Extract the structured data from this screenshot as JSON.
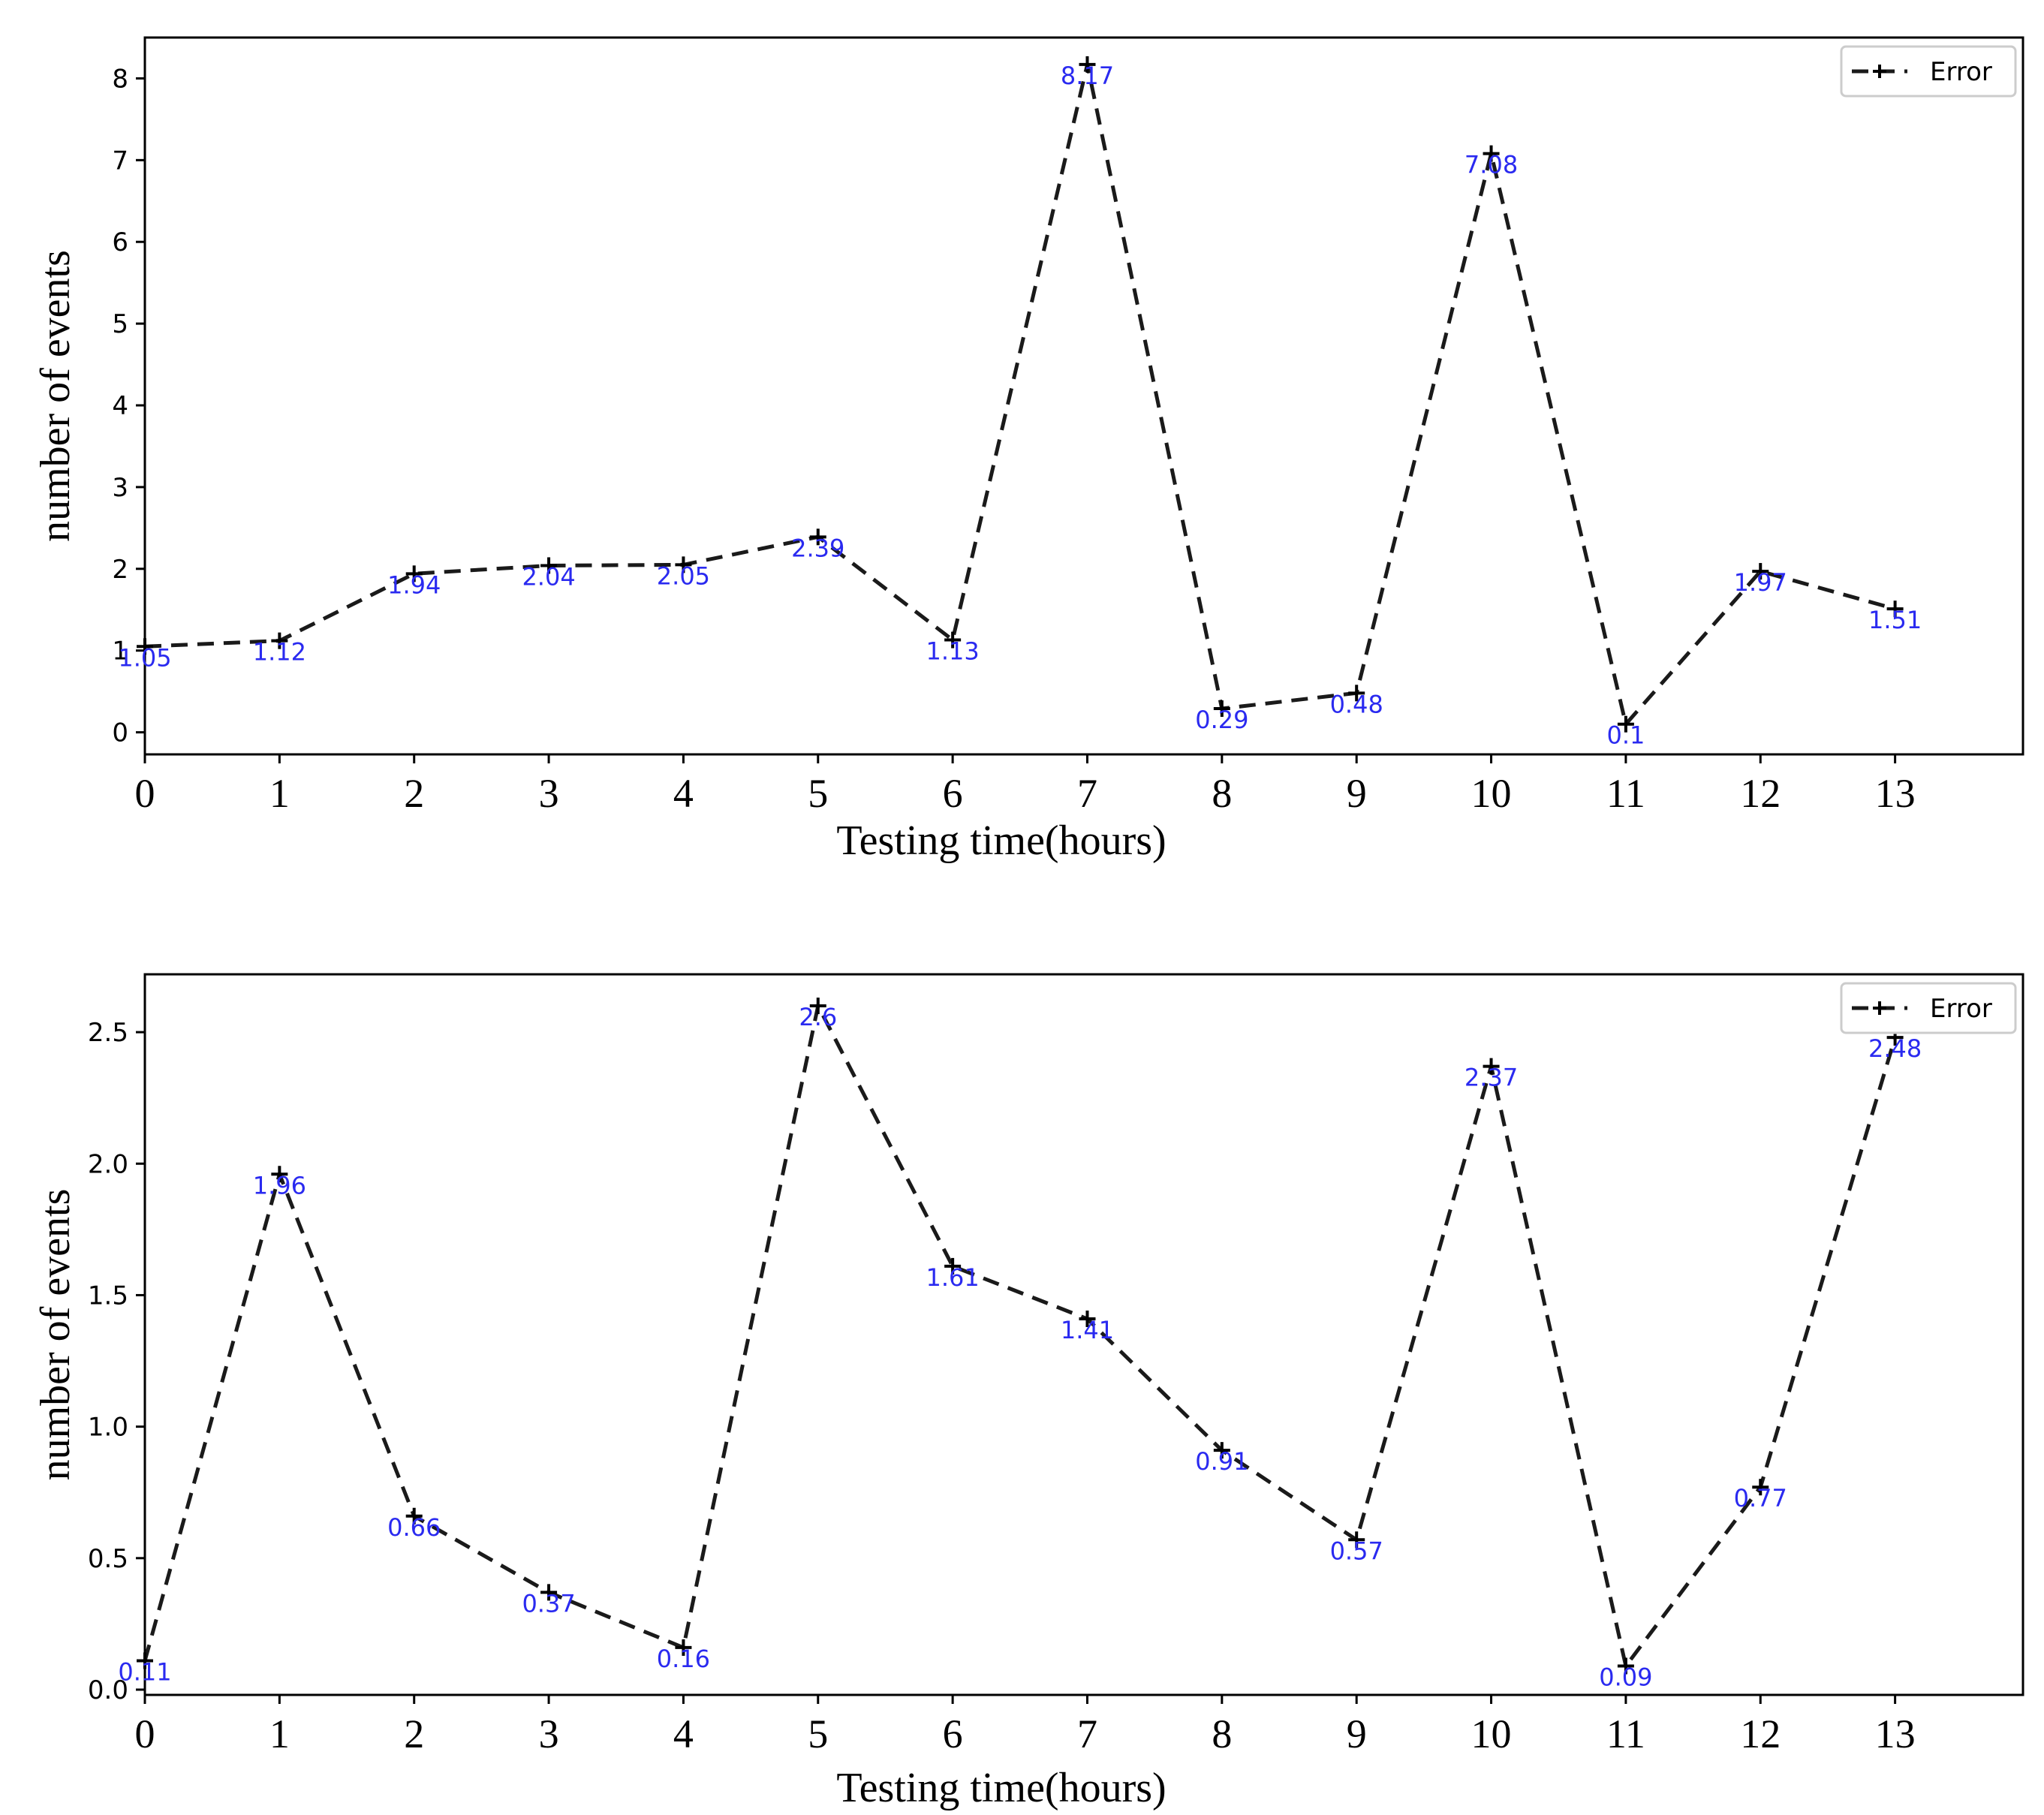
{
  "chart_data": [
    {
      "type": "line",
      "xlabel": "Testing time(hours)",
      "ylabel": "number of events",
      "x": [
        0,
        1,
        2,
        3,
        4,
        5,
        6,
        7,
        8,
        9,
        10,
        11,
        12,
        13
      ],
      "xticks": [
        "0",
        "1",
        "2",
        "3",
        "4",
        "5",
        "6",
        "7",
        "8",
        "9",
        "10",
        "11",
        "12",
        "13"
      ],
      "xlim": [
        0,
        13.95
      ],
      "ylim": [
        -0.27,
        8.5
      ],
      "yticks": [
        "0",
        "1",
        "2",
        "3",
        "4",
        "5",
        "6",
        "7",
        "8"
      ],
      "legend": {
        "position": "top-right"
      },
      "series": [
        {
          "name": "Error",
          "color": "#1a1a1a",
          "label_color": "#2a2af0",
          "values": [
            1.05,
            1.12,
            1.94,
            2.04,
            2.05,
            2.39,
            1.13,
            8.17,
            0.29,
            0.48,
            7.08,
            0.1,
            1.97,
            1.51
          ],
          "labels": [
            "1.05",
            "1.12",
            "1.94",
            "2.04",
            "2.05",
            "2.39",
            "1.13",
            "8.17",
            "0.29",
            "0.48",
            "7.08",
            "0.1",
            "1.97",
            "1.51"
          ]
        }
      ]
    },
    {
      "type": "line",
      "xlabel": "Testing time(hours)",
      "ylabel": "number of events",
      "x": [
        0,
        1,
        2,
        3,
        4,
        5,
        6,
        7,
        8,
        9,
        10,
        11,
        12,
        13
      ],
      "xticks": [
        "0",
        "1",
        "2",
        "3",
        "4",
        "5",
        "6",
        "7",
        "8",
        "9",
        "10",
        "11",
        "12",
        "13"
      ],
      "xlim": [
        0,
        13.95
      ],
      "ylim": [
        -0.02,
        2.72
      ],
      "yticks": [
        "0.0",
        "0.5",
        "1.0",
        "1.5",
        "2.0",
        "2.5"
      ],
      "legend": {
        "position": "top-right"
      },
      "series": [
        {
          "name": "Error",
          "color": "#1a1a1a",
          "label_color": "#2a2af0",
          "values": [
            0.11,
            1.96,
            0.66,
            0.37,
            0.16,
            2.6,
            1.61,
            1.41,
            0.91,
            0.57,
            2.37,
            0.09,
            0.77,
            2.48
          ],
          "labels": [
            "0.11",
            "1.96",
            "0.66",
            "0.37",
            "0.16",
            "2.6",
            "1.61",
            "1.41",
            "0.91",
            "0.57",
            "2.37",
            "0.09",
            "0.77",
            "2.48"
          ]
        }
      ]
    }
  ]
}
